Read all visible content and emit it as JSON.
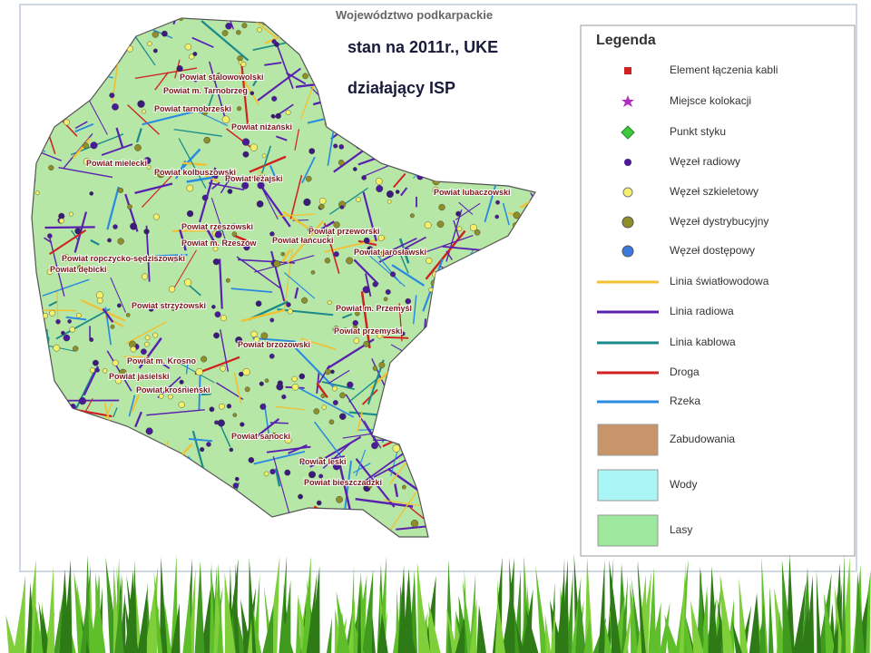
{
  "header": {
    "title": "Województwo podkarpackie",
    "subtitle_1": "stan na 2011r., UKE",
    "subtitle_2": "działający ISP"
  },
  "legend": {
    "title": "Legenda",
    "items": [
      "Element łączenia kabli",
      "Miejsce kolokacji",
      "Punkt styku",
      "Węzeł radiowy",
      "Węzeł szkieletowy",
      "Węzeł dystrybucyjny",
      "Węzeł dostępowy",
      "Linia światłowodowa",
      "Linia radiowa",
      "Linia kablowa",
      "Droga",
      "Rzeka",
      "Zabudowania",
      "Wody",
      "Lasy"
    ]
  },
  "map": {
    "labels": [
      "Powiat stalowowolski",
      "Powiat m. Tarnobrzeg",
      "Powiat tarnobrzeski",
      "Powiat niżański",
      "Powiat mielecki",
      "Powiat kolbuszowski",
      "Powiat leżajski",
      "Powiat lubaczowski",
      "Powiat rzeszowski",
      "Powiat łańcucki",
      "Powiat przeworski",
      "Powiat m. Rzeszów",
      "Powiat jarosławski",
      "Powiat ropczycko-sędziszowski",
      "Powiat dębicki",
      "Powiat strzyżowski",
      "Powiat m. Przemyśl",
      "Powiat przemyski",
      "Powiat brzozowski",
      "Powiat m. Krosno",
      "Powiat jasielski",
      "Powiat krośnieński",
      "Powiat sanocki",
      "Powiat leski",
      "Powiat bieszczadzki"
    ]
  }
}
